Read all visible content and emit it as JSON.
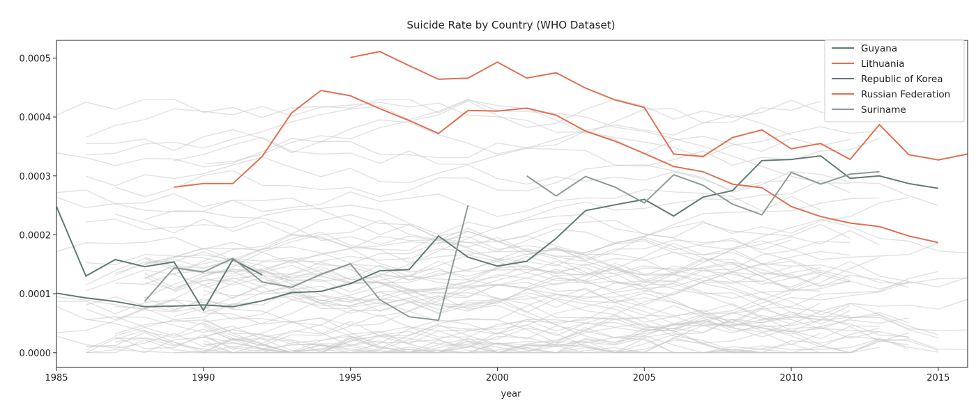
{
  "chart_data": {
    "type": "line",
    "title": "Suicide Rate by Country (WHO Dataset)",
    "xlabel": "year",
    "ylabel": "",
    "xlim": [
      1985,
      2016
    ],
    "ylim": [
      -2.5e-05,
      0.00053
    ],
    "xticks": [
      1985,
      1990,
      1995,
      2000,
      2005,
      2010,
      2015
    ],
    "yticks": [
      0.0,
      0.0001,
      0.0002,
      0.0003,
      0.0004,
      0.0005
    ],
    "ytick_labels": [
      "0.0000",
      "0.0001",
      "0.0002",
      "0.0003",
      "0.0004",
      "0.0005"
    ],
    "grid": false,
    "legend_position": "top-right",
    "colors": {
      "highlight_red": "#e07050",
      "highlight_slate": "#5f7a76",
      "background_lines": "#c8c8c8"
    },
    "series": [
      {
        "name": "Guyana",
        "color": "#5f7a76",
        "x": [
          1985,
          1986,
          1987,
          1988,
          1989,
          1990,
          1991,
          1992,
          1993
        ],
        "values": [
          0.000248,
          0.00013,
          0.000158,
          0.000146,
          0.000154,
          7.2e-05,
          0.000158,
          0.000132,
          null
        ]
      },
      {
        "name": "Lithuania",
        "color": "#e07050",
        "x": [
          1995,
          1996,
          1997,
          1998,
          1999,
          2000,
          2001,
          2002,
          2003,
          2004,
          2005,
          2006,
          2007,
          2008,
          2009,
          2010,
          2011,
          2012,
          2013,
          2014,
          2015,
          2016
        ],
        "values": [
          0.000501,
          0.000511,
          0.000487,
          0.000464,
          0.000466,
          0.000493,
          0.000466,
          0.000475,
          0.000449,
          0.000429,
          0.000416,
          0.000337,
          0.000333,
          0.000365,
          0.000378,
          0.000346,
          0.000355,
          0.000328,
          0.000387,
          0.000336,
          0.000327,
          0.000337
        ]
      },
      {
        "name": "Republic of Korea",
        "color": "#5f7a76",
        "x": [
          1985,
          1986,
          1987,
          1988,
          1989,
          1990,
          1991,
          1992,
          1993,
          1994,
          1995,
          1996,
          1997,
          1998,
          1999,
          2000,
          2001,
          2002,
          2003,
          2004,
          2005,
          2006,
          2007,
          2008,
          2009,
          2010,
          2011,
          2012,
          2013,
          2014,
          2015
        ],
        "values": [
          0.000101,
          9.3e-05,
          8.7e-05,
          7.8e-05,
          7.9e-05,
          8.1e-05,
          7.8e-05,
          8.8e-05,
          0.000102,
          0.000104,
          0.000117,
          0.000139,
          0.000141,
          0.000198,
          0.000162,
          0.000147,
          0.000155,
          0.000194,
          0.000241,
          0.000251,
          0.00026,
          0.000232,
          0.000264,
          0.000275,
          0.000326,
          0.000328,
          0.000334,
          0.000296,
          0.0003,
          0.000287,
          0.000279
        ]
      },
      {
        "name": "Russian Federation",
        "color": "#e07050",
        "x": [
          1989,
          1990,
          1991,
          1992,
          1993,
          1994,
          1995,
          1996,
          1997,
          1998,
          1999,
          2000,
          2001,
          2002,
          2003,
          2004,
          2005,
          2006,
          2007,
          2008,
          2009,
          2010,
          2011,
          2012,
          2013,
          2014,
          2015
        ],
        "values": [
          0.000281,
          0.000287,
          0.000287,
          0.000333,
          0.000407,
          0.000445,
          0.000436,
          0.000414,
          0.000394,
          0.000372,
          0.000411,
          0.00041,
          0.000415,
          0.000403,
          0.000376,
          0.000359,
          0.000338,
          0.000316,
          0.000307,
          0.000286,
          0.00028,
          0.000248,
          0.000231,
          0.00022,
          0.000214,
          0.000198,
          0.000187
        ]
      },
      {
        "name": "Suriname",
        "color": "#8a9a98",
        "x": [
          1988,
          1989,
          1990,
          1991,
          1992,
          1993,
          1994,
          1995,
          1996,
          1997,
          1998,
          1999,
          2000,
          2001,
          2002,
          2003,
          2004,
          2005,
          2006,
          2007,
          2008,
          2009,
          2010,
          2011,
          2012,
          2013,
          2014
        ],
        "values": [
          8.7e-05,
          0.000144,
          0.000137,
          0.00016,
          0.00012,
          0.000111,
          0.000133,
          0.000151,
          9e-05,
          6.1e-05,
          5.5e-05,
          0.00025,
          null,
          0.0003,
          0.000266,
          0.000299,
          0.000281,
          0.000254,
          0.000302,
          0.000284,
          0.000252,
          0.000234,
          0.000306,
          0.000286,
          0.000303,
          0.000307,
          null
        ]
      }
    ]
  }
}
